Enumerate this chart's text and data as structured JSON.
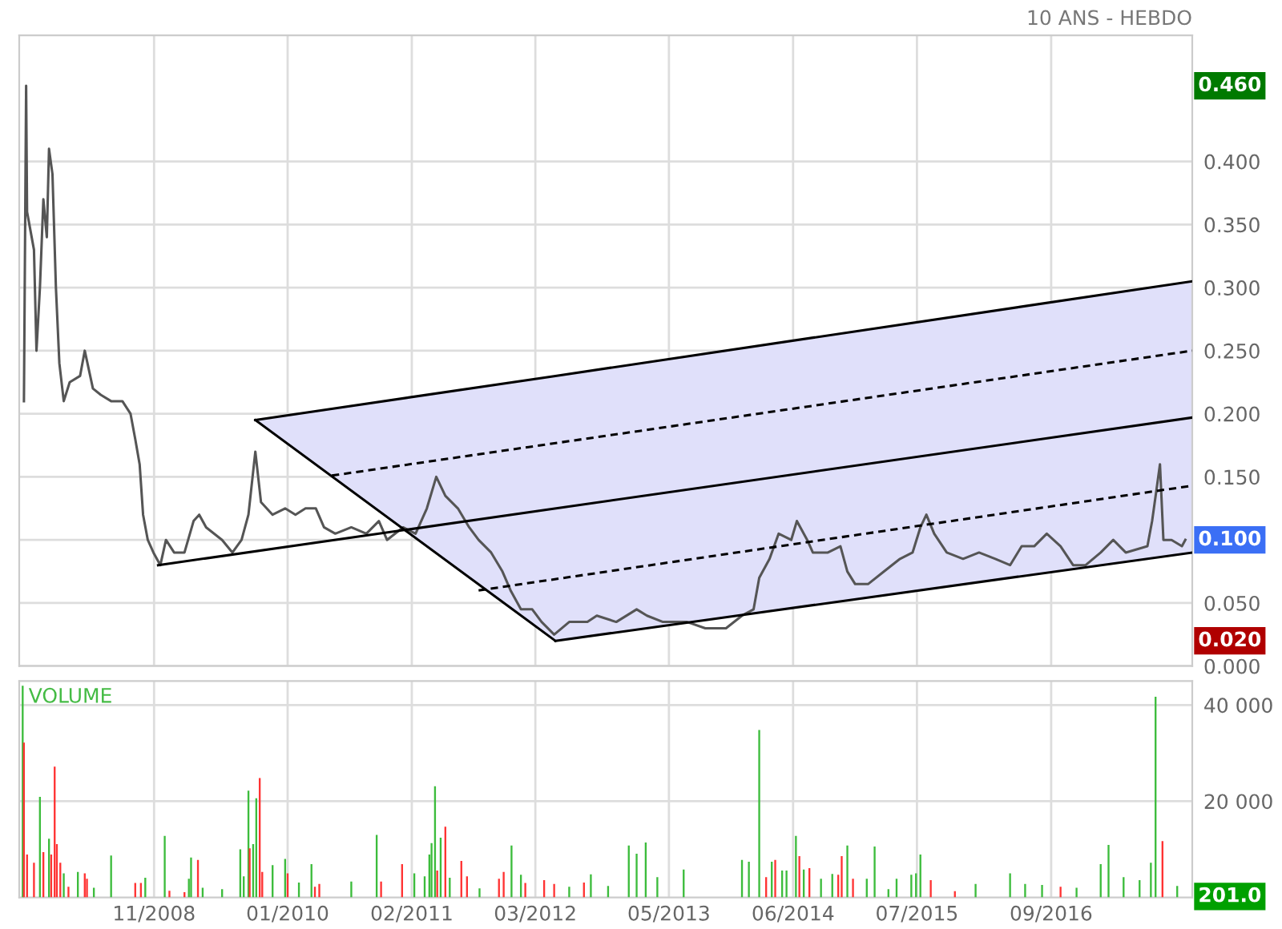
{
  "chart_data": [
    {
      "type": "line",
      "annotations": [
        "10 ANS - HEBDO",
        "0.460",
        "0.100",
        "0.020"
      ],
      "xlim": [
        "2007-08-29",
        "2017-11-25"
      ],
      "xticks": [
        {
          "value": "2008-11",
          "label": null
        },
        {
          "value": "2010-01",
          "label": null
        },
        {
          "value": "2011-02",
          "label": null
        },
        {
          "value": "2012-03",
          "label": null
        },
        {
          "value": "2013-05",
          "label": null
        },
        {
          "value": "2014-06",
          "label": null
        },
        {
          "value": "2015-07",
          "label": null
        },
        {
          "value": "2016-09",
          "label": null
        }
      ],
      "ylim": [
        0,
        0.5
      ],
      "yticks": [
        {
          "value": 0,
          "label": "0.000"
        },
        {
          "value": 0.05,
          "label": "0.050"
        },
        {
          "value": 0.1,
          "label": null
        },
        {
          "value": 0.15,
          "label": "0.150"
        },
        {
          "value": 0.2,
          "label": "0.200"
        },
        {
          "value": 0.25,
          "label": "0.250"
        },
        {
          "value": 0.3,
          "label": "0.300"
        },
        {
          "value": 0.35,
          "label": "0.350"
        },
        {
          "value": 0.4,
          "label": "0.400"
        }
      ],
      "grid": true,
      "tick_labels": "y",
      "series": [
        {
          "type": "line",
          "color": "#555555",
          "x": [
            "2007-09-13",
            "2007-09-20",
            "2007-09-23",
            "2007-10-15",
            "2007-10-23",
            "2007-11-03",
            "2007-11-14",
            "2007-11-25",
            "2007-12-02",
            "2007-12-13",
            "2007-12-24",
            "2008-01-04",
            "2008-01-18",
            "2008-02-06",
            "2008-03-10",
            "2008-03-25",
            "2008-04-20",
            "2008-05-15",
            "2008-06-17",
            "2008-07-23",
            "2008-08-18",
            "2008-09-02",
            "2008-09-16",
            "2008-09-27",
            "2008-10-12",
            "2008-10-30",
            "2008-11-21",
            "2008-12-09",
            "2009-01-04",
            "2009-02-06",
            "2009-03-07",
            "2009-03-25",
            "2009-04-16",
            "2009-06-06",
            "2009-07-09",
            "2009-08-07",
            "2009-08-29",
            "2009-09-20",
            "2009-10-08",
            "2009-11-14",
            "2009-12-24",
            "2010-01-26",
            "2010-02-27",
            "2010-04-01",
            "2010-04-27",
            "2010-06-02",
            "2010-07-23",
            "2010-09-09",
            "2010-10-19",
            "2010-11-14",
            "2011-01-04",
            "2011-02-13",
            "2011-03-21",
            "2011-04-20",
            "2011-05-19",
            "2011-06-28",
            "2011-08-03",
            "2011-09-02",
            "2011-10-12",
            "2011-11-17",
            "2011-12-13",
            "2012-01-15",
            "2012-02-20",
            "2012-03-21",
            "2012-04-30",
            "2012-06-17",
            "2012-08-14",
            "2012-09-13",
            "2012-11-14",
            "2013-01-18",
            "2013-02-20",
            "2013-04-12",
            "2013-06-28",
            "2013-08-25",
            "2013-10-30",
            "2013-12-20",
            "2014-01-26",
            "2014-02-13",
            "2014-03-18",
            "2014-04-16",
            "2014-05-26",
            "2014-06-13",
            "2014-07-16",
            "2014-08-03",
            "2014-09-20",
            "2014-10-30",
            "2014-11-21",
            "2014-12-16",
            "2015-01-26",
            "2015-03-18",
            "2015-05-08",
            "2015-06-17",
            "2015-07-12",
            "2015-07-31",
            "2015-08-25",
            "2015-10-04",
            "2015-11-25",
            "2016-01-15",
            "2016-03-07",
            "2016-04-23",
            "2016-05-30",
            "2016-07-09",
            "2016-08-18",
            "2016-10-01",
            "2016-11-10",
            "2016-12-20",
            "2017-02-06",
            "2017-03-18",
            "2017-04-27",
            "2017-07-05",
            "2017-07-20",
            "2017-08-03",
            "2017-08-14",
            "2017-08-25",
            "2017-09-20",
            "2017-10-23",
            "2017-11-03"
          ],
          "values": [
            0.21,
            0.46,
            0.36,
            0.33,
            0.25,
            0.3,
            0.37,
            0.34,
            0.41,
            0.39,
            0.3,
            0.24,
            0.21,
            0.225,
            0.23,
            0.25,
            0.22,
            0.215,
            0.21,
            0.21,
            0.2,
            0.18,
            0.16,
            0.12,
            0.1,
            0.09,
            0.08,
            0.1,
            0.09,
            0.09,
            0.115,
            0.12,
            0.11,
            0.1,
            0.09,
            0.1,
            0.12,
            0.17,
            0.13,
            0.12,
            0.125,
            0.12,
            0.125,
            0.125,
            0.11,
            0.105,
            0.11,
            0.105,
            0.115,
            0.1,
            0.11,
            0.105,
            0.125,
            0.15,
            0.135,
            0.125,
            0.11,
            0.1,
            0.09,
            0.075,
            0.06,
            0.045,
            0.045,
            0.035,
            0.025,
            0.035,
            0.035,
            0.04,
            0.035,
            0.045,
            0.04,
            0.035,
            0.035,
            0.03,
            0.03,
            0.04,
            0.045,
            0.07,
            0.085,
            0.105,
            0.1,
            0.115,
            0.1,
            0.09,
            0.09,
            0.095,
            0.075,
            0.065,
            0.065,
            0.075,
            0.085,
            0.09,
            0.11,
            0.12,
            0.105,
            0.09,
            0.085,
            0.09,
            0.085,
            0.08,
            0.095,
            0.095,
            0.105,
            0.095,
            0.08,
            0.08,
            0.09,
            0.1,
            0.09,
            0.095,
            0.115,
            0.14,
            0.16,
            0.1,
            0.1,
            0.095,
            0.1
          ]
        },
        {
          "type": "line",
          "color": "#000000",
          "line_style": "solid",
          "x": [
            "2009-09-20",
            "2012-05-04",
            "2017-11-25"
          ],
          "values": [
            0.195,
            0.23,
            0.305
          ],
          "lower": [
            0.195,
            0.02,
            0.09
          ],
          "upper": [
            0.195,
            0.23,
            0.305
          ]
        },
        {
          "type": "line",
          "color": "#000000",
          "line_style": "solid",
          "x": [
            "2008-11-14",
            "2017-11-25"
          ],
          "values": [
            0.08,
            0.197
          ]
        },
        {
          "type": "line",
          "color": "#000000",
          "line_style": "solid",
          "x": [
            "2009-09-20",
            "2012-05-04"
          ],
          "values": [
            0.195,
            0.02
          ]
        },
        {
          "type": "line",
          "color": "#000000",
          "line_style": "solid",
          "x": [
            "2012-05-04",
            "2017-11-25"
          ],
          "values": [
            0.02,
            0.09
          ]
        },
        {
          "type": "line",
          "color": "#000000",
          "line_style": "dashed",
          "x": [
            "2010-05-22",
            "2017-11-25"
          ],
          "values": [
            0.151,
            0.25
          ]
        },
        {
          "type": "line",
          "color": "#000000",
          "line_style": "dashed",
          "x": [
            "2011-09-02",
            "2017-11-25"
          ],
          "values": [
            0.06,
            0.143
          ]
        }
      ]
    },
    {
      "type": "bar",
      "title": "VOLUME",
      "annotations": [
        "201.0"
      ],
      "xlim": [
        "2007-08-29",
        "2017-11-25"
      ],
      "xticks": [
        {
          "value": "2008-11",
          "label": "11/2008"
        },
        {
          "value": "2010-01",
          "label": "01/2010"
        },
        {
          "value": "2011-02",
          "label": "02/2011"
        },
        {
          "value": "2012-03",
          "label": "03/2012"
        },
        {
          "value": "2013-05",
          "label": "05/2013"
        },
        {
          "value": "2014-06",
          "label": "06/2014"
        },
        {
          "value": "2015-07",
          "label": "07/2015"
        },
        {
          "value": "2016-09",
          "label": "09/2016"
        }
      ],
      "ylim": [
        0,
        45000
      ],
      "yticks": [
        {
          "value": 20000,
          "label": "20 000"
        },
        {
          "value": 40000,
          "label": "40 000"
        }
      ],
      "grid": true,
      "x": [
        "2007-09-09",
        "2007-09-13",
        "2007-09-23",
        "2007-10-15",
        "2007-11-03",
        "2007-11-14",
        "2007-12-02",
        "2007-12-09",
        "2007-12-20",
        "2007-12-27",
        "2008-01-07",
        "2008-01-18",
        "2008-02-02",
        "2008-03-03",
        "2008-03-25",
        "2008-04-01",
        "2008-04-23",
        "2008-06-17",
        "2008-09-02",
        "2008-09-20",
        "2008-10-04",
        "2008-12-05",
        "2008-12-20",
        "2009-02-06",
        "2009-02-20",
        "2009-02-27",
        "2009-03-21",
        "2009-04-05",
        "2009-06-06",
        "2009-08-03",
        "2009-08-14",
        "2009-08-29",
        "2009-09-02",
        "2009-09-13",
        "2009-09-23",
        "2009-10-04",
        "2009-10-12",
        "2009-11-14",
        "2009-12-24",
        "2010-01-01",
        "2010-02-06",
        "2010-03-18",
        "2010-03-29",
        "2010-04-12",
        "2010-07-23",
        "2010-10-12",
        "2010-10-26",
        "2011-01-01",
        "2011-02-09",
        "2011-03-14",
        "2011-03-29",
        "2011-04-05",
        "2011-04-16",
        "2011-04-23",
        "2011-05-04",
        "2011-05-19",
        "2011-06-02",
        "2011-07-09",
        "2011-07-27",
        "2011-09-05",
        "2011-11-06",
        "2011-11-21",
        "2011-12-16",
        "2012-01-15",
        "2012-01-29",
        "2012-03-29",
        "2012-04-30",
        "2012-06-17",
        "2012-08-03",
        "2012-08-25",
        "2012-10-19",
        "2012-12-24",
        "2013-01-18",
        "2013-02-16",
        "2013-03-25",
        "2013-06-17",
        "2013-12-20",
        "2014-01-11",
        "2014-02-13",
        "2014-03-07",
        "2014-03-25",
        "2014-04-05",
        "2014-04-27",
        "2014-05-11",
        "2014-06-10",
        "2014-06-21",
        "2014-07-05",
        "2014-07-23",
        "2014-08-29",
        "2014-10-04",
        "2014-10-23",
        "2014-11-03",
        "2014-11-21",
        "2014-12-09",
        "2015-01-22",
        "2015-02-16",
        "2015-04-01",
        "2015-04-27",
        "2015-06-13",
        "2015-06-28",
        "2015-07-12",
        "2015-08-14",
        "2015-10-30",
        "2016-01-04",
        "2016-04-23",
        "2016-06-10",
        "2016-08-03",
        "2016-10-01",
        "2016-11-21",
        "2017-02-06",
        "2017-03-03",
        "2017-04-20",
        "2017-06-10",
        "2017-07-16",
        "2017-07-31",
        "2017-08-22",
        "2017-10-08"
      ],
      "values": [
        44000,
        32200,
        8900,
        7200,
        20900,
        9400,
        12200,
        8900,
        27200,
        11100,
        7200,
        5000,
        2200,
        5300,
        5000,
        3900,
        2000,
        8700,
        3000,
        3000,
        4100,
        12800,
        1400,
        1100,
        3900,
        8300,
        7800,
        2000,
        1700,
        10000,
        4400,
        22200,
        10200,
        11100,
        20600,
        24800,
        5300,
        6700,
        8000,
        5000,
        3100,
        6900,
        2200,
        2800,
        3300,
        13000,
        3300,
        6900,
        5000,
        4400,
        8900,
        11300,
        23100,
        5600,
        12400,
        14700,
        4100,
        7600,
        4400,
        1900,
        3900,
        5300,
        10800,
        4700,
        3000,
        3600,
        2800,
        2200,
        3100,
        4800,
        2400,
        10800,
        9100,
        11400,
        4200,
        5800,
        7800,
        7400,
        34800,
        4200,
        7400,
        7800,
        5600,
        5600,
        12800,
        8600,
        5800,
        6100,
        3900,
        4900,
        4700,
        8600,
        10800,
        3900,
        3900,
        10600,
        1700,
        3900,
        4700,
        5000,
        8900,
        3600,
        1300,
        2800,
        5000,
        2800,
        2600,
        2200,
        2000,
        6900,
        10900,
        4200,
        3600,
        7200,
        41700,
        11700,
        2400
      ],
      "colors": [
        "#3cbc3c",
        "#ff3333",
        "#ff3333",
        "#ff3333",
        "#3cbc3c",
        "#ff3333",
        "#3cbc3c",
        "#ff3333",
        "#ff3333",
        "#ff3333",
        "#ff3333",
        "#3cbc3c",
        "#ff3333",
        "#3cbc3c",
        "#ff3333",
        "#ff3333",
        "#3cbc3c",
        "#3cbc3c",
        "#ff3333",
        "#ff3333",
        "#3cbc3c",
        "#3cbc3c",
        "#ff3333",
        "#ff3333",
        "#3cbc3c",
        "#3cbc3c",
        "#ff3333",
        "#3cbc3c",
        "#3cbc3c",
        "#3cbc3c",
        "#3cbc3c",
        "#3cbc3c",
        "#ff3333",
        "#3cbc3c",
        "#3cbc3c",
        "#ff3333",
        "#ff3333",
        "#3cbc3c",
        "#3cbc3c",
        "#ff3333",
        "#3cbc3c",
        "#3cbc3c",
        "#ff3333",
        "#ff3333",
        "#3cbc3c",
        "#3cbc3c",
        "#ff3333",
        "#ff3333",
        "#3cbc3c",
        "#3cbc3c",
        "#3cbc3c",
        "#3cbc3c",
        "#3cbc3c",
        "#ff3333",
        "#3cbc3c",
        "#ff3333",
        "#3cbc3c",
        "#ff3333",
        "#ff3333",
        "#3cbc3c",
        "#ff3333",
        "#ff3333",
        "#3cbc3c",
        "#3cbc3c",
        "#ff3333",
        "#ff3333",
        "#ff3333",
        "#3cbc3c",
        "#ff3333",
        "#3cbc3c",
        "#3cbc3c",
        "#3cbc3c",
        "#3cbc3c",
        "#3cbc3c",
        "#3cbc3c",
        "#3cbc3c",
        "#3cbc3c",
        "#3cbc3c",
        "#3cbc3c",
        "#ff3333",
        "#3cbc3c",
        "#ff3333",
        "#3cbc3c",
        "#3cbc3c",
        "#3cbc3c",
        "#ff3333",
        "#3cbc3c",
        "#ff3333",
        "#3cbc3c",
        "#3cbc3c",
        "#ff3333",
        "#ff3333",
        "#3cbc3c",
        "#ff3333",
        "#3cbc3c",
        "#3cbc3c",
        "#3cbc3c",
        "#3cbc3c",
        "#3cbc3c",
        "#3cbc3c",
        "#3cbc3c",
        "#ff3333",
        "#ff3333",
        "#3cbc3c",
        "#3cbc3c",
        "#3cbc3c",
        "#3cbc3c",
        "#ff3333",
        "#3cbc3c",
        "#3cbc3c",
        "#3cbc3c",
        "#3cbc3c",
        "#3cbc3c",
        "#3cbc3c",
        "#3cbc3c",
        "#ff3333",
        "#3cbc3c"
      ]
    }
  ]
}
